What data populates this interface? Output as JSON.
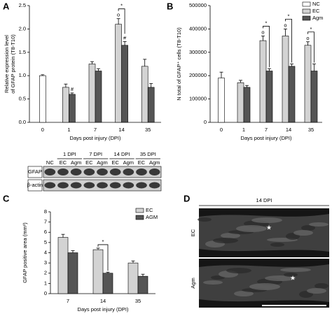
{
  "panel_labels": [
    "A",
    "B",
    "C",
    "D"
  ],
  "chart_data": [
    {
      "type": "bar",
      "ylabel": [
        "Relative expression level",
        "of GFAP protein (T8-T10)"
      ],
      "xlabel": "Days post injury (DPI)",
      "categories": [
        "0",
        "1",
        "7",
        "14",
        "35"
      ],
      "series": [
        {
          "color": "#ffffff",
          "values": [
            1.0,
            null,
            null,
            null,
            null
          ],
          "errors": [
            0.02,
            null,
            null,
            null,
            null
          ],
          "markers": [
            null,
            null,
            null,
            null,
            null
          ]
        },
        {
          "color": "#d3d3d3",
          "values": [
            null,
            0.75,
            1.25,
            2.1,
            1.2
          ],
          "errors": [
            null,
            0.07,
            0.05,
            0.12,
            0.15
          ],
          "markers": [
            null,
            null,
            null,
            "o",
            null
          ]
        },
        {
          "color": "#555555",
          "values": [
            null,
            0.6,
            1.1,
            1.65,
            0.75
          ],
          "errors": [
            null,
            0.03,
            0.05,
            0.08,
            0.08
          ],
          "markers": [
            null,
            "#",
            null,
            "#",
            null
          ]
        }
      ],
      "brackets": [
        null,
        null,
        null,
        "*",
        null
      ],
      "ylim": [
        0,
        2.5
      ],
      "yticks": [
        {
          "value": 0,
          "label": "0.0"
        },
        {
          "value": 0.5,
          "label": "0.5"
        },
        {
          "value": 1,
          "label": "1.0"
        },
        {
          "value": 1.5,
          "label": "1.5"
        },
        {
          "value": 2,
          "label": "2.0"
        },
        {
          "value": 2.5,
          "label": "2.5"
        }
      ],
      "legend": null
    },
    {
      "type": "bar",
      "ylabel": [
        "N total of GFAP⁺ cells (T8-T10)"
      ],
      "xlabel": "Days post injury (DPI)",
      "categories": [
        "0",
        "1",
        "7",
        "14",
        "35"
      ],
      "series": [
        {
          "name": "NC",
          "color": "#ffffff",
          "values": [
            190000,
            null,
            null,
            null,
            null
          ],
          "errors": [
            25000,
            null,
            null,
            null,
            null
          ],
          "markers": [
            null,
            null,
            null,
            null,
            null
          ]
        },
        {
          "name": "EC",
          "color": "#d3d3d3",
          "values": [
            null,
            170000,
            350000,
            370000,
            330000
          ],
          "errors": [
            null,
            10000,
            20000,
            30000,
            15000
          ],
          "markers": [
            null,
            null,
            "o",
            "o",
            "o"
          ]
        },
        {
          "name": "Agm",
          "color": "#555555",
          "values": [
            null,
            150000,
            220000,
            240000,
            220000
          ],
          "errors": [
            null,
            8000,
            10000,
            10000,
            30000
          ],
          "markers": [
            null,
            null,
            null,
            null,
            null
          ]
        }
      ],
      "brackets": [
        null,
        null,
        "*",
        "*",
        "*"
      ],
      "ylim": [
        0,
        500000
      ],
      "yticks": [
        0,
        100000,
        200000,
        300000,
        400000,
        500000
      ],
      "legend": "top-right"
    },
    {
      "type": "bar",
      "ylabel": [
        "GFAP positive area (mm²)"
      ],
      "xlabel": "Days post injury (DPI)",
      "categories": [
        "7",
        "14",
        "35"
      ],
      "series": [
        {
          "name": "EC",
          "color": "#d3d3d3",
          "values": [
            5.5,
            4.3,
            3.0
          ],
          "errors": [
            0.3,
            0.15,
            0.2
          ],
          "markers": [
            null,
            null,
            null
          ]
        },
        {
          "name": "AGM",
          "color": "#555555",
          "values": [
            4.0,
            2.0,
            1.7
          ],
          "errors": [
            0.2,
            0.1,
            0.2
          ],
          "markers": [
            null,
            null,
            null
          ]
        }
      ],
      "brackets": [
        null,
        "*",
        null
      ],
      "ylim": [
        0,
        8
      ],
      "yticks": [
        0,
        1,
        2,
        3,
        4,
        5,
        6,
        7,
        8
      ],
      "legend": "top-right"
    }
  ],
  "blot": {
    "groups": [
      "1 DPI",
      "7 DPI",
      "14 DPI",
      "35 DPI"
    ],
    "lanes": [
      "NC",
      "EC",
      "Agm",
      "EC",
      "Agm",
      "EC",
      "Agm",
      "EC",
      "Agm"
    ],
    "rows": [
      "GFAP",
      "β-actin"
    ]
  },
  "micrographs": {
    "title": "14 DPI",
    "rows": [
      "EC",
      "Agm"
    ],
    "marker": "★"
  }
}
